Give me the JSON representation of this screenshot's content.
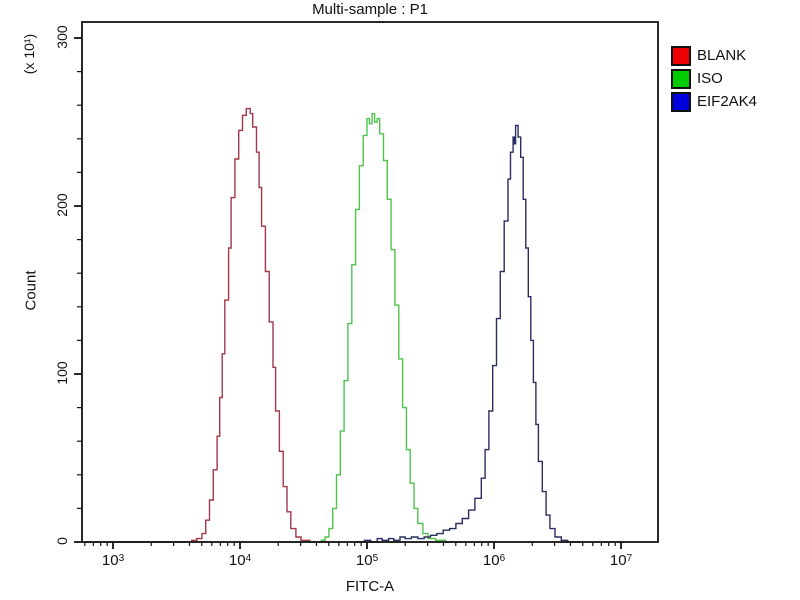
{
  "title": "Multi-sample : P1",
  "legend": {
    "items": [
      {
        "label": "BLANK",
        "color": "#ee0000"
      },
      {
        "label": "ISO",
        "color": "#00cc00"
      },
      {
        "label": "EIF2AK4",
        "color": "#0000dd"
      }
    ]
  },
  "chart_data": {
    "type": "line",
    "subtype": "flow-cytometry-histogram-overlay",
    "title": "Multi-sample : P1",
    "xlabel": "FITC-A",
    "ylabel": "Count",
    "y_unit_label": "(x 10¹)",
    "x_scale": "log10",
    "x_range_log10": [
      2.76,
      7.29
    ],
    "x_decade_ticks": [
      3,
      4,
      5,
      6,
      7
    ],
    "ylim": [
      0,
      300
    ],
    "y_major_ticks": [
      0,
      100,
      200,
      300
    ],
    "y_minor_step": 20,
    "grid": false,
    "legend_position": "right-outside",
    "axis_color": "#111111",
    "series": [
      {
        "name": "BLANK",
        "color": "#a33948",
        "peak_log10x": 4.05,
        "peak_count": 258,
        "points": [
          [
            2.78,
            0
          ],
          [
            3.55,
            0
          ],
          [
            3.62,
            1
          ],
          [
            3.66,
            2
          ],
          [
            3.7,
            5
          ],
          [
            3.73,
            13
          ],
          [
            3.76,
            25
          ],
          [
            3.79,
            43
          ],
          [
            3.82,
            63
          ],
          [
            3.84,
            86
          ],
          [
            3.86,
            112
          ],
          [
            3.88,
            144
          ],
          [
            3.91,
            175
          ],
          [
            3.93,
            205
          ],
          [
            3.96,
            228
          ],
          [
            3.99,
            245
          ],
          [
            4.02,
            254
          ],
          [
            4.05,
            258
          ],
          [
            4.08,
            255
          ],
          [
            4.1,
            247
          ],
          [
            4.13,
            232
          ],
          [
            4.15,
            211
          ],
          [
            4.17,
            188
          ],
          [
            4.2,
            161
          ],
          [
            4.23,
            131
          ],
          [
            4.26,
            104
          ],
          [
            4.28,
            78
          ],
          [
            4.31,
            54
          ],
          [
            4.34,
            33
          ],
          [
            4.37,
            18
          ],
          [
            4.4,
            8
          ],
          [
            4.44,
            3
          ],
          [
            4.48,
            1
          ],
          [
            4.55,
            0
          ],
          [
            4.7,
            0
          ]
        ]
      },
      {
        "name": "ISO",
        "color": "#4ec44e",
        "peak_log10x": 5.04,
        "peak_count": 255,
        "points": [
          [
            4.35,
            0
          ],
          [
            4.6,
            0
          ],
          [
            4.64,
            1
          ],
          [
            4.67,
            3
          ],
          [
            4.7,
            8
          ],
          [
            4.73,
            20
          ],
          [
            4.76,
            40
          ],
          [
            4.79,
            66
          ],
          [
            4.82,
            96
          ],
          [
            4.85,
            130
          ],
          [
            4.88,
            165
          ],
          [
            4.91,
            198
          ],
          [
            4.94,
            224
          ],
          [
            4.97,
            242
          ],
          [
            5.0,
            252
          ],
          [
            5.02,
            249
          ],
          [
            5.04,
            255
          ],
          [
            5.06,
            250
          ],
          [
            5.08,
            252
          ],
          [
            5.1,
            243
          ],
          [
            5.13,
            227
          ],
          [
            5.16,
            204
          ],
          [
            5.19,
            174
          ],
          [
            5.22,
            141
          ],
          [
            5.25,
            109
          ],
          [
            5.28,
            80
          ],
          [
            5.31,
            55
          ],
          [
            5.34,
            35
          ],
          [
            5.37,
            20
          ],
          [
            5.4,
            11
          ],
          [
            5.44,
            5
          ],
          [
            5.48,
            2
          ],
          [
            5.54,
            1
          ],
          [
            5.62,
            0
          ],
          [
            5.72,
            0
          ]
        ]
      },
      {
        "name": "EIF2AK4",
        "color": "#2b2e62",
        "peak_log10x": 6.17,
        "peak_count": 248,
        "points": [
          [
            4.9,
            0
          ],
          [
            4.98,
            1
          ],
          [
            5.03,
            0
          ],
          [
            5.08,
            2
          ],
          [
            5.12,
            1
          ],
          [
            5.17,
            2
          ],
          [
            5.21,
            1
          ],
          [
            5.26,
            3
          ],
          [
            5.3,
            2
          ],
          [
            5.35,
            3
          ],
          [
            5.4,
            2
          ],
          [
            5.45,
            3
          ],
          [
            5.5,
            4
          ],
          [
            5.55,
            5
          ],
          [
            5.6,
            7
          ],
          [
            5.65,
            8
          ],
          [
            5.7,
            11
          ],
          [
            5.75,
            14
          ],
          [
            5.8,
            19
          ],
          [
            5.85,
            26
          ],
          [
            5.9,
            38
          ],
          [
            5.93,
            55
          ],
          [
            5.96,
            78
          ],
          [
            5.99,
            105
          ],
          [
            6.02,
            133
          ],
          [
            6.05,
            161
          ],
          [
            6.08,
            191
          ],
          [
            6.11,
            216
          ],
          [
            6.13,
            232
          ],
          [
            6.15,
            241
          ],
          [
            6.16,
            237
          ],
          [
            6.17,
            248
          ],
          [
            6.19,
            241
          ],
          [
            6.21,
            229
          ],
          [
            6.23,
            204
          ],
          [
            6.25,
            175
          ],
          [
            6.27,
            146
          ],
          [
            6.29,
            120
          ],
          [
            6.31,
            95
          ],
          [
            6.33,
            70
          ],
          [
            6.35,
            48
          ],
          [
            6.38,
            30
          ],
          [
            6.41,
            16
          ],
          [
            6.44,
            8
          ],
          [
            6.48,
            3
          ],
          [
            6.53,
            1
          ],
          [
            6.58,
            0
          ],
          [
            6.68,
            0
          ]
        ]
      }
    ]
  }
}
